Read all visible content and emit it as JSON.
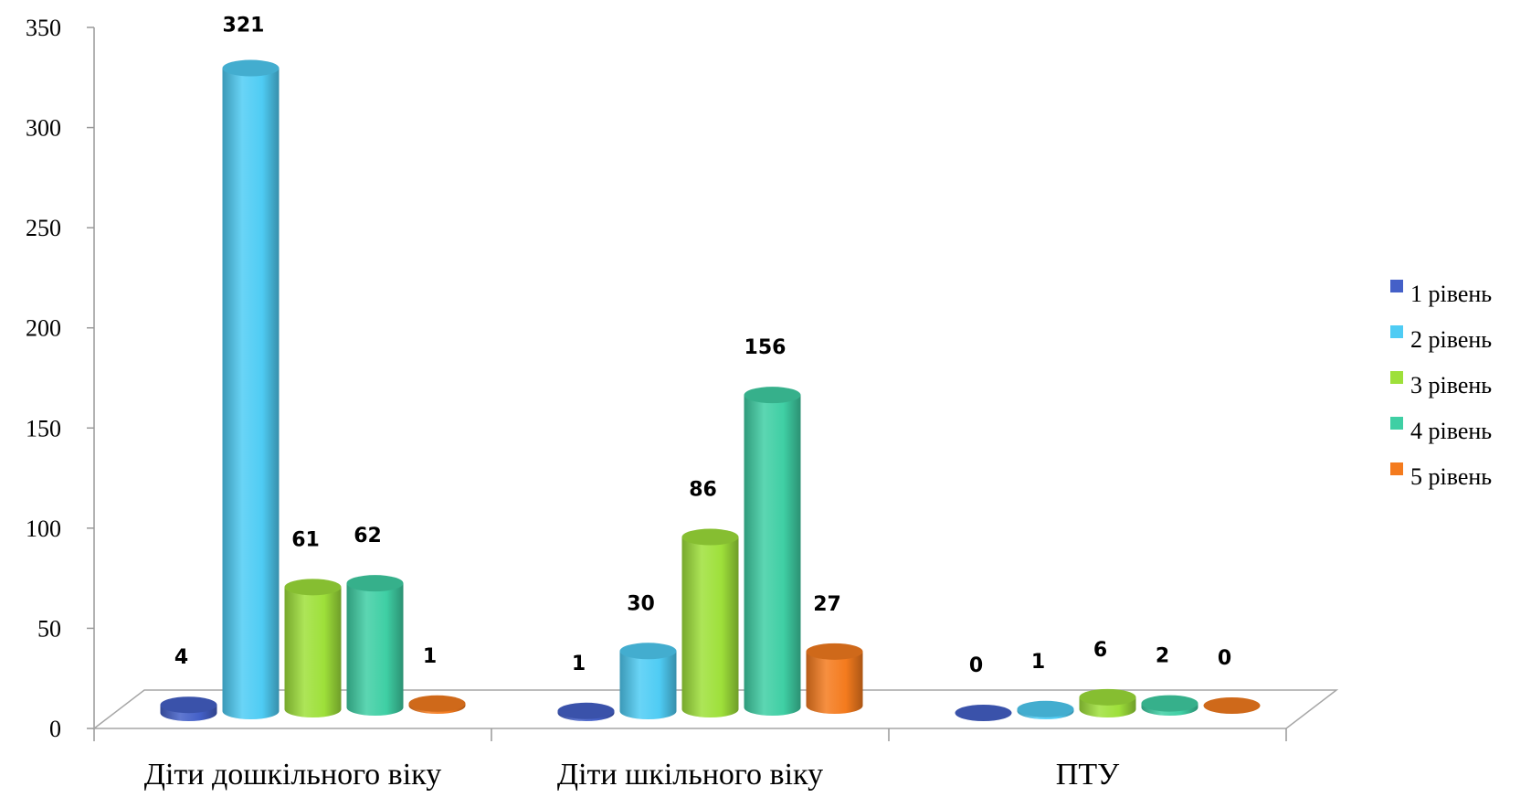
{
  "chart_data": {
    "type": "bar",
    "categories": [
      "Діти дошкільного віку",
      "Діти шкільного віку",
      "ПТУ"
    ],
    "series": [
      {
        "name": "1 рівень",
        "values": [
          4,
          1,
          0
        ],
        "color": "#4460C8"
      },
      {
        "name": "2 рівень",
        "values": [
          321,
          30,
          1
        ],
        "color": "#4FCCF4"
      },
      {
        "name": "3 рівень",
        "values": [
          61,
          86,
          6
        ],
        "color": "#9EE03A"
      },
      {
        "name": "4 рівень",
        "values": [
          62,
          156,
          2
        ],
        "color": "#3FCFA4"
      },
      {
        "name": "5 рівень",
        "values": [
          1,
          27,
          0
        ],
        "color": "#F47B1E"
      }
    ],
    "yticks": [
      "0",
      "50",
      "100",
      "150",
      "200",
      "250",
      "300",
      "350"
    ],
    "ylim": [
      0,
      350
    ],
    "legend_position": "right",
    "grid": false,
    "style": "3d-cylinder"
  }
}
